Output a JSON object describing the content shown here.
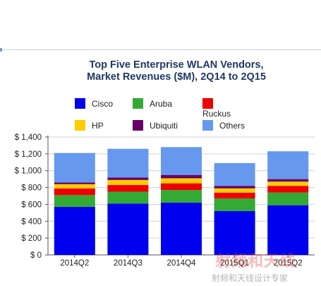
{
  "chart_data": {
    "type": "bar",
    "stacked": true,
    "title": "Top Five Enterprise WLAN Vendors,",
    "subtitle": "Market Revenues ($M), 2Q14 to 2Q15",
    "categories": [
      "2014Q2",
      "2014Q3",
      "2014Q4",
      "2015Q1",
      "2015Q2"
    ],
    "series": [
      {
        "name": "Cisco",
        "color": "#0000ee",
        "values": [
          570,
          610,
          620,
          520,
          590
        ]
      },
      {
        "name": "Aruba",
        "color": "#33aa33",
        "values": [
          140,
          140,
          150,
          150,
          150
        ]
      },
      {
        "name": "Ruckus",
        "color": "#ee0000",
        "values": [
          80,
          80,
          80,
          70,
          80
        ]
      },
      {
        "name": "HP",
        "color": "#ffcc00",
        "values": [
          50,
          60,
          60,
          50,
          50
        ]
      },
      {
        "name": "Ubiquiti",
        "color": "#660066",
        "values": [
          20,
          30,
          40,
          30,
          30
        ]
      },
      {
        "name": "Others",
        "color": "#6699ee",
        "values": [
          350,
          340,
          330,
          270,
          330
        ]
      }
    ],
    "ylim": [
      0,
      1400
    ],
    "yticks": [
      0,
      200,
      400,
      600,
      800,
      1000,
      1200,
      1400
    ],
    "ytick_labels": [
      "$ 0",
      "$ 200",
      "$ 400",
      "$ 600",
      "$ 800",
      "$ 1,000",
      "$ 1,200",
      "$ 1,400"
    ],
    "grid": true,
    "legend_position": "top"
  },
  "watermark": {
    "line1": "射频和天线",
    "line2": "射频和天线设计专家"
  }
}
